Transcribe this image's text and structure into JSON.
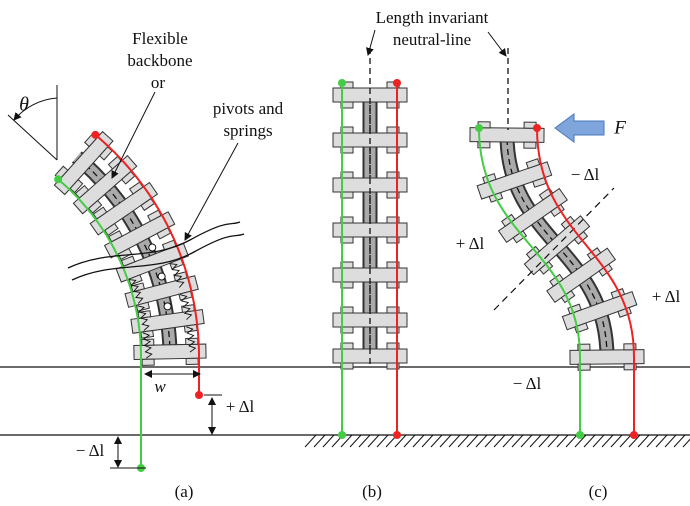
{
  "panel_a": {
    "theta": "θ",
    "backbone_label": [
      "Flexible",
      "backbone",
      "or"
    ],
    "pivot_label": [
      "pivots and",
      "springs"
    ],
    "width": "w",
    "red_delta": "+ Δl",
    "green_delta": "− Δl",
    "caption": "(a)"
  },
  "panel_b": {
    "neutral_line_label": [
      "Length invariant",
      "neutral-line"
    ],
    "caption": "(b)"
  },
  "panel_c": {
    "force": "F",
    "upper_delta": "− Δl",
    "green_delta": "+ Δl",
    "red_delta": "+ Δl",
    "lower_delta": "− Δl",
    "caption": "(c)"
  }
}
